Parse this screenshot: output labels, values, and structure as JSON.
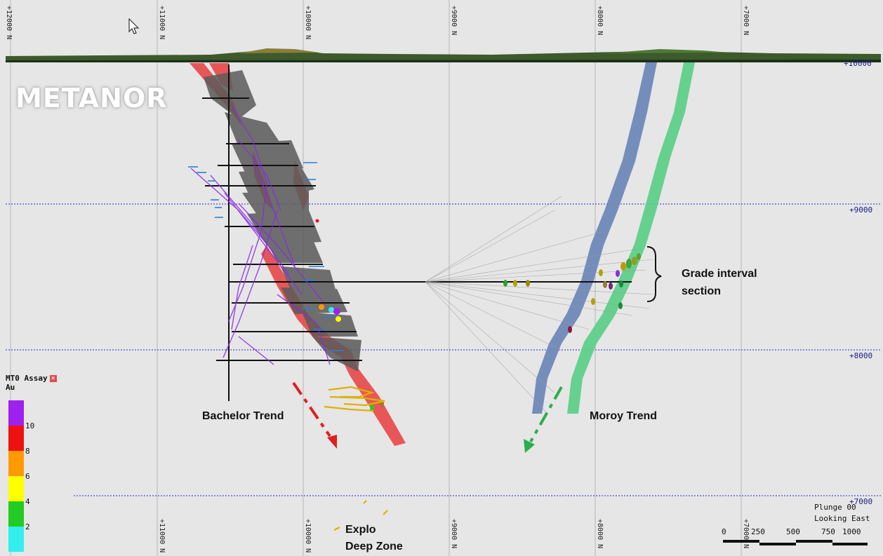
{
  "logo_text": "METANOR",
  "top_labels": [
    "+12000 N",
    "+11000 N",
    "+10000 N",
    "+9000 N",
    "+8000 N",
    "+7000 N"
  ],
  "bottom_labels": [
    "+11000 N",
    "+10000 N",
    "+9000 N",
    "+8000 N",
    "+7000 N"
  ],
  "elevation_labels": [
    "+10000",
    "+9000",
    "+8000",
    "+7000"
  ],
  "trends": {
    "bachelor": "Bachelor Trend",
    "moroy": "Moroy Trend"
  },
  "annotations": {
    "grade_line1": "Grade interval",
    "grade_line2": "section",
    "explo_line1": "Explo",
    "explo_line2": "Deep Zone"
  },
  "legend": {
    "title": "MT0 Assay",
    "attribute": "Au",
    "close_icon": "close-icon",
    "ticks": [
      "10",
      "8",
      "6",
      "4",
      "2"
    ],
    "colors": [
      "#a020f0",
      "#ee1111",
      "#ff9900",
      "#ffff00",
      "#22cc22",
      "#33eeee"
    ]
  },
  "orientation": {
    "plunge": "Plunge 00",
    "looking": "Looking East"
  },
  "scale": {
    "labels": [
      "0",
      "250",
      "500",
      "750",
      "1000"
    ]
  },
  "colors": {
    "moroy_blue": "#6f88b8",
    "moroy_green": "#5fcf8a",
    "bachelor_red": "#e84747",
    "grid_blue": "#2a2ad0",
    "arrow_red": "#e02020",
    "arrow_green": "#2aae50"
  }
}
